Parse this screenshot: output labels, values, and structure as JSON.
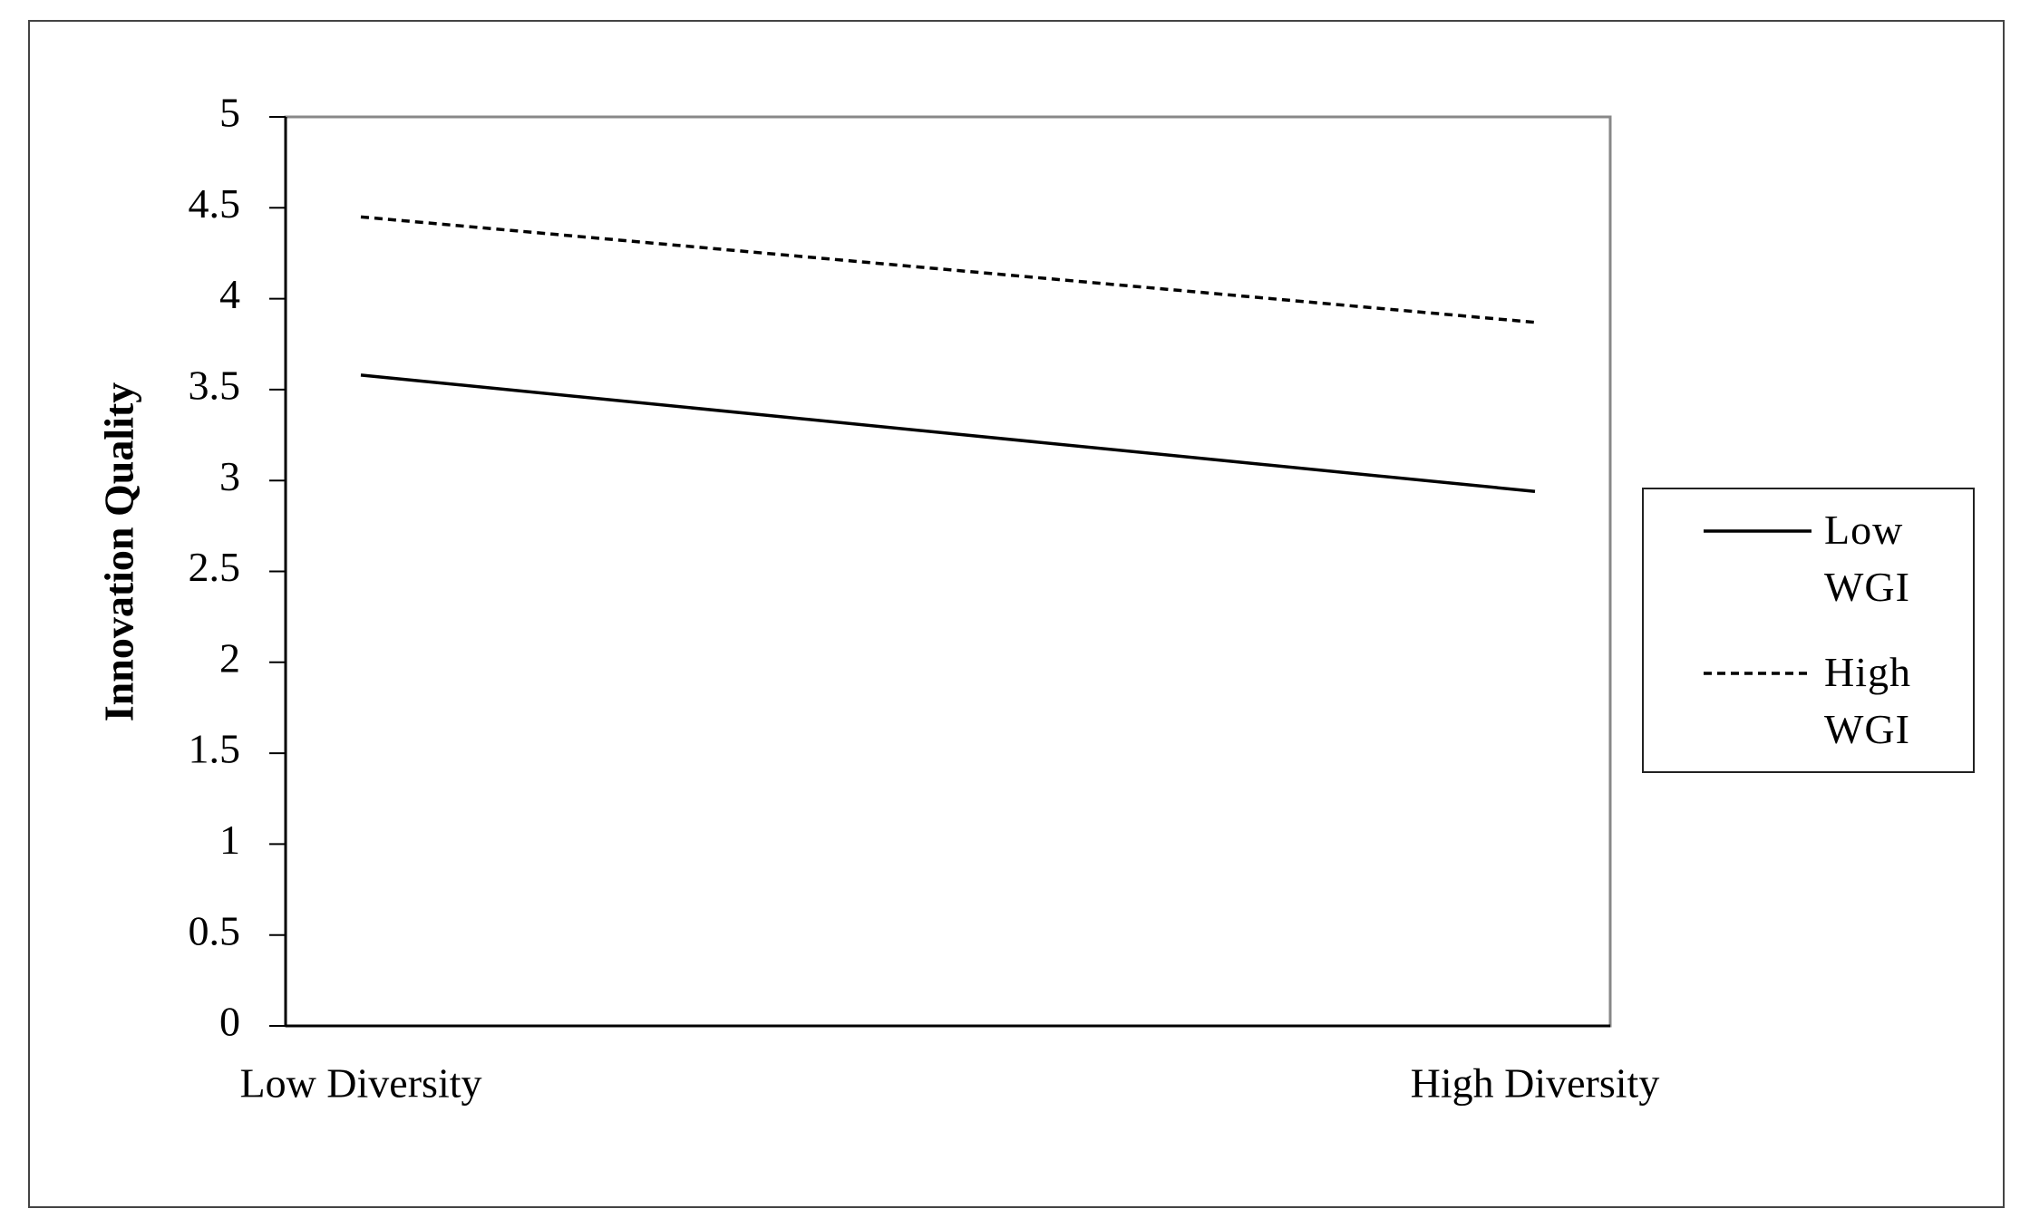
{
  "chart_data": {
    "type": "line",
    "y_label": "Innovation Quality",
    "categories": [
      "Low Diversity",
      "High Diversity"
    ],
    "series": [
      {
        "name": "Low WGI",
        "color": "#000000",
        "dash": "solid",
        "values": [
          3.58,
          2.94
        ]
      },
      {
        "name": "High WGI",
        "color": "#000000",
        "dash": "dashed",
        "values": [
          4.45,
          3.87
        ]
      }
    ],
    "ylim": [
      0,
      5
    ],
    "yticks": [
      0,
      0.5,
      1,
      1.5,
      2,
      2.5,
      3,
      3.5,
      4,
      4.5,
      5
    ],
    "grid": false,
    "legend": "right"
  }
}
